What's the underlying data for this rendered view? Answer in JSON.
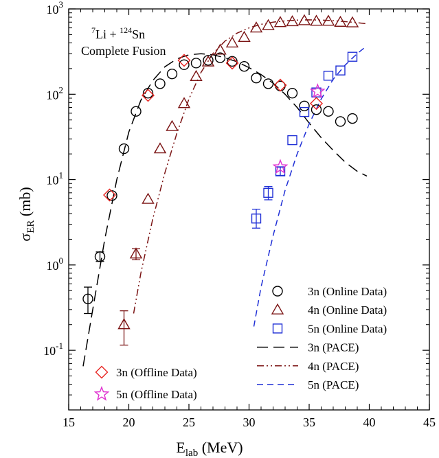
{
  "chart_data": {
    "type": "scatter",
    "y_scale": "log",
    "xlim": [
      15,
      45
    ],
    "ylim": [
      0.02,
      1000
    ],
    "x_ticks": [
      15,
      20,
      25,
      30,
      35,
      40,
      45
    ],
    "x_tick_labels": [
      "15",
      "20",
      "25",
      "30",
      "35",
      "40",
      "45"
    ],
    "y_ticks": [
      {
        "value": 0.1,
        "base": "10",
        "exp": "-1"
      },
      {
        "value": 1,
        "base": "10",
        "exp": "0"
      },
      {
        "value": 10,
        "base": "10",
        "exp": "1"
      },
      {
        "value": 100,
        "base": "10",
        "exp": "2"
      },
      {
        "value": 1000,
        "base": "10",
        "exp": "3"
      }
    ],
    "xlabel": {
      "main": "E",
      "sub": "lab",
      "rest": " (MeV)"
    },
    "ylabel": {
      "main": "σ",
      "sub": "ER",
      "rest": " (mb)"
    },
    "annotation": {
      "line1": {
        "pre1": "7",
        "t1": "Li + ",
        "pre2": "124",
        "t2": "Sn"
      },
      "line2": "Complete Fusion"
    },
    "colors": {
      "3n": "#000000",
      "4n": "#7b1414",
      "5n": "#1f2fd6",
      "offline3n": "#e8231f",
      "offline5n": "#e030d0"
    },
    "series": [
      {
        "key": "s3n_online",
        "name": "3n (Online Data)",
        "marker": "circle",
        "color": "#000000",
        "x": [
          16.6,
          17.6,
          18.6,
          19.6,
          20.6,
          21.6,
          22.6,
          23.6,
          24.6,
          25.6,
          26.6,
          27.6,
          28.6,
          29.6,
          30.6,
          31.6,
          32.6,
          33.6,
          34.6,
          35.6,
          36.6,
          37.6,
          38.6
        ],
        "y": [
          0.4,
          1.25,
          6.5,
          23,
          63,
          103,
          133,
          173,
          222,
          232,
          250,
          268,
          243,
          212,
          155,
          133,
          125,
          103,
          73,
          66,
          63,
          48,
          52
        ],
        "err": [
          [
            0.27,
            0.55
          ],
          [
            1.1,
            1.42
          ],
          null,
          null,
          null,
          null,
          null,
          null,
          null,
          null,
          null,
          null,
          null,
          null,
          null,
          null,
          null,
          null,
          null,
          null,
          null,
          null,
          null
        ]
      },
      {
        "key": "s4n_online",
        "name": "4n (Online Data)",
        "marker": "triangle",
        "color": "#7b1414",
        "x": [
          19.6,
          20.6,
          21.6,
          22.6,
          23.6,
          24.6,
          25.6,
          26.6,
          27.6,
          28.6,
          29.6,
          30.6,
          31.6,
          32.6,
          33.6,
          34.6,
          35.6,
          36.6,
          37.6,
          38.6
        ],
        "y": [
          0.2,
          1.35,
          5.9,
          23,
          42,
          78,
          162,
          240,
          330,
          400,
          465,
          600,
          640,
          695,
          710,
          730,
          720,
          720,
          700,
          690
        ],
        "err": [
          [
            0.115,
            0.29
          ],
          [
            1.15,
            1.55
          ],
          null,
          null,
          null,
          null,
          null,
          null,
          null,
          null,
          null,
          null,
          null,
          null,
          null,
          null,
          null,
          null,
          null,
          null
        ]
      },
      {
        "key": "s5n_online",
        "name": "5n (Online Data)",
        "marker": "square",
        "color": "#1f2fd6",
        "x": [
          30.6,
          31.6,
          32.6,
          33.6,
          34.6,
          35.6,
          36.6,
          37.6,
          38.6
        ],
        "y": [
          3.5,
          7,
          12.5,
          29,
          62,
          105,
          165,
          190,
          275
        ],
        "err": [
          [
            2.7,
            4.5
          ],
          [
            5.8,
            8.3
          ],
          [
            11.2,
            14
          ],
          null,
          null,
          null,
          null,
          null,
          null
        ]
      },
      {
        "key": "s3n_offline",
        "name": "3n (Offline Data)",
        "marker": "diamond",
        "color": "#e8231f",
        "x": [
          18.4,
          21.6,
          24.6,
          28.6,
          32.6,
          35.6
        ],
        "y": [
          6.6,
          97,
          250,
          232,
          128,
          78
        ]
      },
      {
        "key": "s5n_offline",
        "name": "5n (Offline Data)",
        "marker": "star",
        "color": "#e030d0",
        "x": [
          32.6,
          35.7
        ],
        "y": [
          14,
          108
        ]
      },
      {
        "key": "pace3n",
        "name": "3n (PACE)",
        "line": "longdash",
        "color": "#000000",
        "x": [
          16.2,
          17,
          18,
          19,
          20,
          21,
          22,
          23,
          24,
          25,
          26,
          27,
          28,
          29,
          30,
          31,
          32,
          33,
          34,
          35,
          36,
          37,
          38,
          39,
          39.8
        ],
        "y": [
          0.065,
          0.3,
          2,
          10,
          36,
          85,
          145,
          210,
          260,
          290,
          298,
          290,
          268,
          240,
          205,
          170,
          135,
          100,
          70,
          46,
          31,
          22,
          16,
          12.5,
          11
        ]
      },
      {
        "key": "pace4n",
        "name": "4n (PACE)",
        "line": "dashdotdot",
        "color": "#7b1414",
        "x": [
          20.4,
          21,
          22,
          23,
          24,
          25,
          26,
          27,
          28,
          29,
          30,
          31,
          32,
          33,
          34,
          35,
          36,
          37,
          38,
          39,
          39.8
        ],
        "y": [
          0.27,
          0.8,
          3.5,
          12,
          35,
          88,
          180,
          300,
          420,
          520,
          600,
          660,
          700,
          725,
          740,
          745,
          740,
          730,
          710,
          690,
          670
        ]
      },
      {
        "key": "pace5n",
        "name": "5n (PACE)",
        "line": "dash",
        "color": "#1f2fd6",
        "x": [
          30.4,
          31,
          32,
          33,
          34,
          35,
          36,
          37,
          38,
          39,
          39.8
        ],
        "y": [
          0.19,
          0.55,
          2.2,
          7.5,
          20,
          45,
          88,
          150,
          220,
          300,
          370
        ]
      }
    ],
    "legend_right": [
      "s3n_online",
      "s4n_online",
      "s5n_online",
      "pace3n",
      "pace4n",
      "pace5n"
    ],
    "legend_left": [
      "s3n_offline",
      "s5n_offline"
    ],
    "legend_placement": "bottom-right and bottom-left",
    "grid": false
  }
}
